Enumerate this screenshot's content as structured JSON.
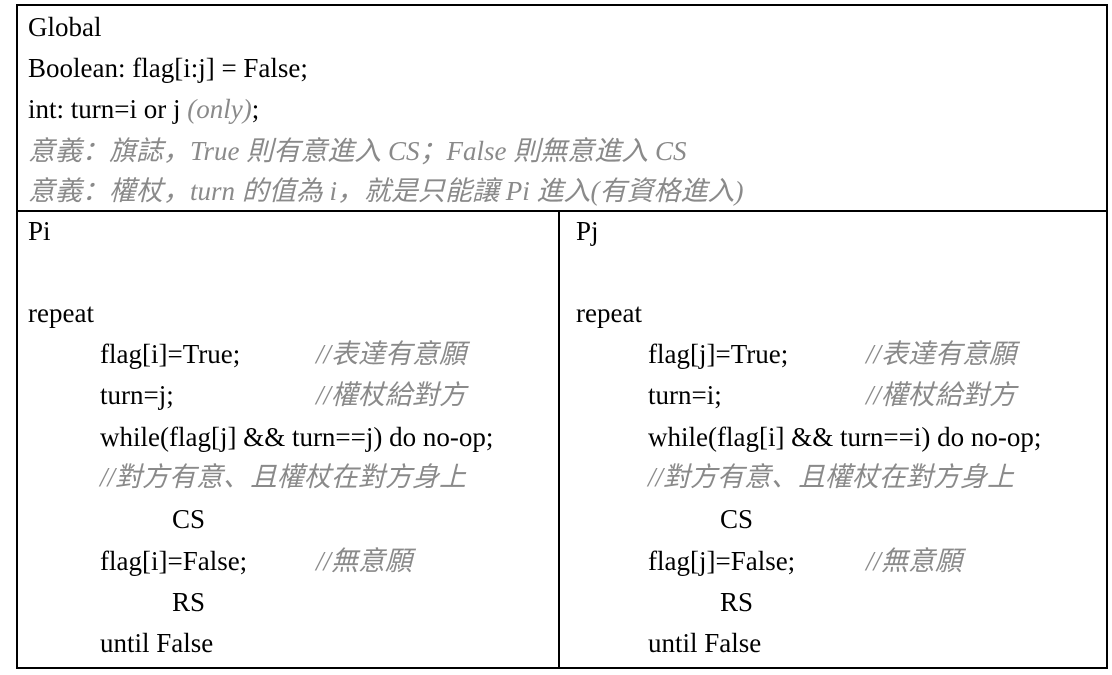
{
  "global": {
    "title": "Global",
    "line1": "Boolean: flag[i:j] = False;",
    "line2_main": "int: turn=i or j ",
    "line2_italic": "(only)",
    "line2_end": ";",
    "meaning1": "意義：旗誌，True 則有意進入 CS；False 則無意進入 CS",
    "meaning2": "意義：權杖，turn 的值為 i，就是只能讓 Pi 進入(有資格進入)"
  },
  "pi": {
    "header": "Pi",
    "repeat": "repeat",
    "stmt1": "flag[i]=True;",
    "comment1": "//表達有意願",
    "stmt2": "turn=j;",
    "comment2": "//權杖給對方",
    "stmt3": "while(flag[j] && turn==j) do no-op;",
    "comment3": "//對方有意、且權杖在對方身上",
    "cs": "CS",
    "stmt4": "flag[i]=False;",
    "comment4": "//無意願",
    "rs": "RS",
    "until": "until False"
  },
  "pj": {
    "header": "Pj",
    "repeat": "repeat",
    "stmt1": "flag[j]=True;",
    "comment1": "//表達有意願",
    "stmt2": "turn=i;",
    "comment2": "//權杖給對方",
    "stmt3": "while(flag[i] && turn==i) do no-op;",
    "comment3": "//對方有意、且權杖在對方身上",
    "cs": "CS",
    "stmt4": "flag[j]=False;",
    "comment4": "//無意願",
    "rs": "RS",
    "until": "until False"
  }
}
